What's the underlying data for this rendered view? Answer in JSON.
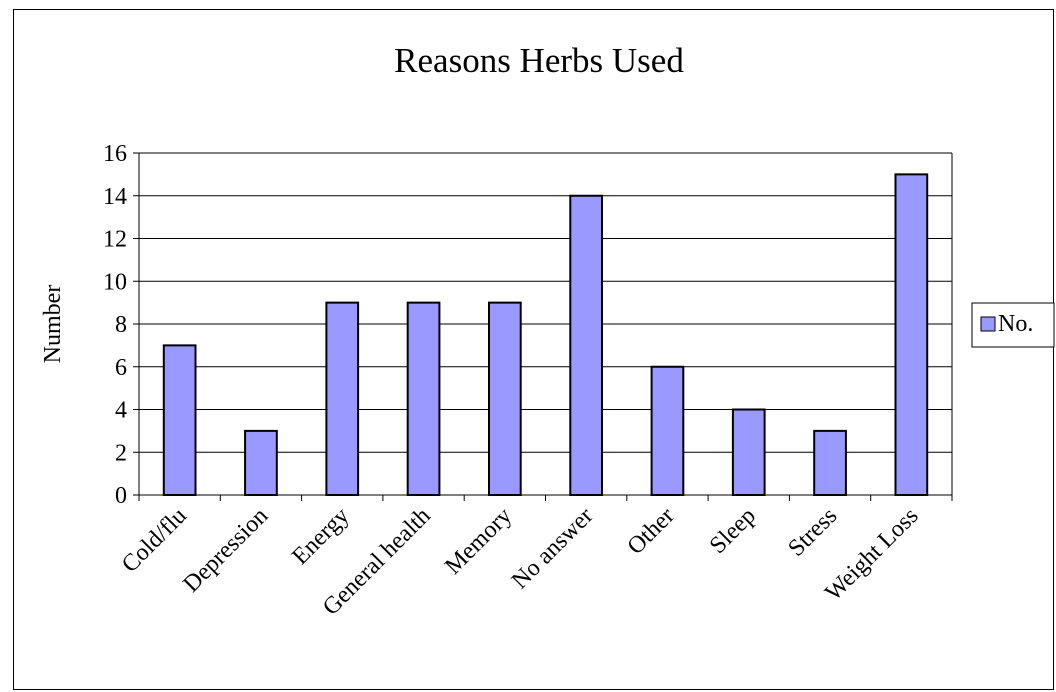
{
  "chart_data": {
    "type": "bar",
    "title": "Reasons Herbs Used",
    "xlabel": "",
    "ylabel": "Number",
    "categories": [
      "Cold/flu",
      "Depression",
      "Energy",
      "General health",
      "Memory",
      "No answer",
      "Other",
      "Sleep",
      "Stress",
      "Weight Loss"
    ],
    "series": [
      {
        "name": "No.",
        "values": [
          7,
          3,
          9,
          9,
          9,
          14,
          6,
          4,
          3,
          15
        ]
      }
    ],
    "ylim": [
      0,
      16
    ],
    "yticks": [
      0,
      2,
      4,
      6,
      8,
      10,
      12,
      14,
      16
    ],
    "grid": true,
    "legend": "right",
    "colors": {
      "bar_fill": "#9999ff",
      "bar_stroke": "#000000",
      "grid": "#000000"
    }
  }
}
